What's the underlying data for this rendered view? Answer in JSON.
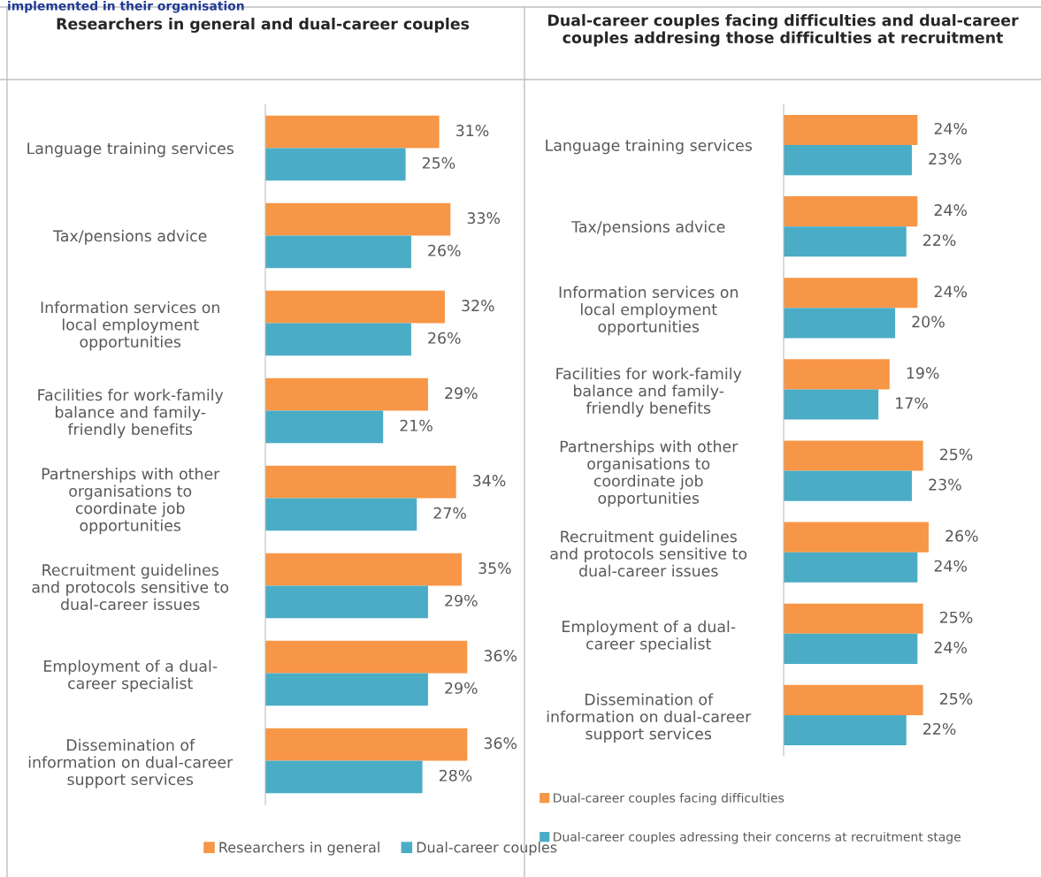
{
  "chart_data": [
    {
      "type": "bar",
      "orientation": "horizontal",
      "title": "Researchers in general and dual-career couples",
      "annotations": [
        "implemented in their organisation"
      ],
      "categories": [
        "Language training services",
        "Tax/pensions advice",
        "Information services on\nlocal employment\nopportunities",
        "Facilities for work-family\nbalance and family-\nfriendly benefits",
        "Partnerships with other\norganisations to\ncoordinate job\nopportunities",
        "Recruitment guidelines\nand protocols sensitive to\ndual-career issues",
        "Employment of a dual-\ncareer specialist",
        "Dissemination of\ninformation on dual-career\nsupport services"
      ],
      "series": [
        {
          "name": "Researchers in general",
          "color": "#f79646",
          "values": [
            31,
            33,
            32,
            29,
            34,
            35,
            36,
            36
          ],
          "value_labels": [
            "31%",
            "33%",
            "32%",
            "29%",
            "34%",
            "35%",
            "36%",
            "36%"
          ]
        },
        {
          "name": "Dual-career couples",
          "color": "#4bacc6",
          "values": [
            25,
            26,
            26,
            21,
            27,
            29,
            29,
            28
          ],
          "value_labels": [
            "25%",
            "26%",
            "26%",
            "21%",
            "27%",
            "29%",
            "29%",
            "28%"
          ]
        }
      ],
      "tick_labels": "y",
      "legend": "bottom",
      "grid": false
    },
    {
      "type": "bar",
      "orientation": "horizontal",
      "title": "Dual-career couples facing difficulties and dual-career couples addresing those difficulties at recruitment",
      "categories": [
        "Language training services",
        "Tax/pensions advice",
        "Information services on\nlocal employment\nopportunities",
        "Facilities for work-family\nbalance and family-\nfriendly benefits",
        "Partnerships with other\norganisations to\ncoordinate job\nopportunities",
        "Recruitment guidelines\nand protocols sensitive to\ndual-career issues",
        "Employment of a dual-\ncareer specialist",
        "Dissemination of\ninformation on dual-career\nsupport services"
      ],
      "series": [
        {
          "name": "Dual-career couples facing difficulties",
          "color": "#f79646",
          "values": [
            24,
            24,
            24,
            19,
            25,
            26,
            25,
            25
          ],
          "value_labels": [
            "24%",
            "24%",
            "24%",
            "19%",
            "25%",
            "26%",
            "25%",
            "25%"
          ]
        },
        {
          "name": "Dual-career couples adressing their concerns at recruitment stage",
          "color": "#4bacc6",
          "values": [
            23,
            22,
            20,
            17,
            23,
            24,
            24,
            22
          ],
          "value_labels": [
            "23%",
            "22%",
            "20%",
            "17%",
            "23%",
            "24%",
            "24%",
            "22%"
          ]
        }
      ],
      "tick_labels": "y",
      "legend": "bottom",
      "grid": false
    }
  ]
}
